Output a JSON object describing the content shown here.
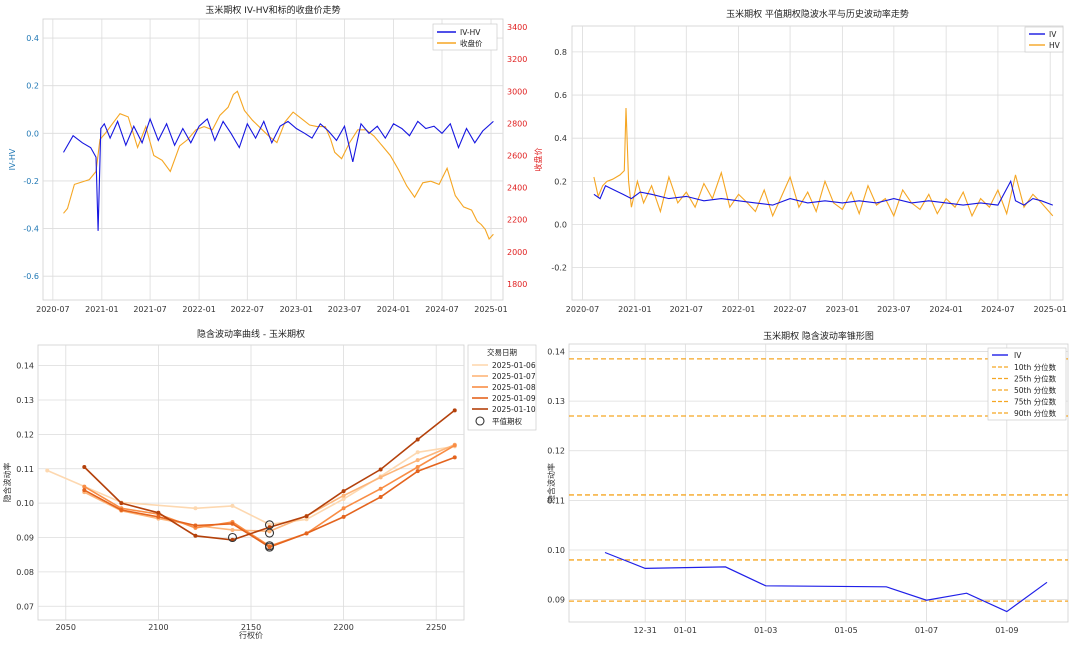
{
  "chart_data": [
    {
      "type": "line",
      "title": "玉米期权 IV-HV和标的收盘价走势",
      "ylabel": "IV-HV",
      "y2label": "收盘价",
      "x_ticks": [
        "2020-07",
        "2021-01",
        "2021-07",
        "2022-01",
        "2022-07",
        "2023-01",
        "2023-07",
        "2024-01",
        "2024-07",
        "2025-01"
      ],
      "y_ticks": [
        "-0.6",
        "-0.4",
        "-0.2",
        "0.0",
        "0.2",
        "0.4"
      ],
      "y2_ticks": [
        "1800",
        "2000",
        "2200",
        "2400",
        "2600",
        "2800",
        "3000",
        "3200",
        "3400"
      ],
      "ylim": [
        -0.7,
        0.48
      ],
      "y2lim": [
        1700,
        3450
      ],
      "legend_position": "top-right",
      "colors": {
        "IV-HV": "#1616e0",
        "收盘价": "#f5a623",
        "left_axis": "#1f77b4",
        "right_axis": "#e02020"
      },
      "series": [
        {
          "name": "IV-HV",
          "axis": "left",
          "x": [
            "2020-08-10",
            "2020-09-15",
            "2020-10-20",
            "2020-11-20",
            "2020-12-10",
            "2020-12-18",
            "2020-12-28",
            "2021-01-10",
            "2021-02-01",
            "2021-03-01",
            "2021-04-01",
            "2021-05-01",
            "2021-06-01",
            "2021-07-01",
            "2021-08-01",
            "2021-09-01",
            "2021-10-01",
            "2021-11-01",
            "2021-12-01",
            "2022-01-01",
            "2022-02-01",
            "2022-03-01",
            "2022-04-01",
            "2022-05-01",
            "2022-06-01",
            "2022-07-01",
            "2022-08-01",
            "2022-09-01",
            "2022-10-01",
            "2022-11-01",
            "2022-12-01",
            "2023-01-01",
            "2023-02-01",
            "2023-03-01",
            "2023-04-01",
            "2023-05-01",
            "2023-06-01",
            "2023-07-01",
            "2023-08-01",
            "2023-09-01",
            "2023-10-01",
            "2023-11-01",
            "2023-12-01",
            "2024-01-01",
            "2024-02-01",
            "2024-03-01",
            "2024-04-01",
            "2024-05-01",
            "2024-06-01",
            "2024-07-01",
            "2024-08-01",
            "2024-09-01",
            "2024-10-01",
            "2024-11-01",
            "2024-12-01",
            "2025-01-10"
          ],
          "y": [
            -0.08,
            -0.01,
            -0.04,
            -0.06,
            -0.1,
            -0.41,
            0.02,
            0.04,
            -0.02,
            0.05,
            -0.05,
            0.03,
            -0.04,
            0.06,
            -0.03,
            0.04,
            -0.05,
            0.02,
            -0.04,
            0.03,
            0.06,
            -0.03,
            0.05,
            0.0,
            -0.06,
            0.04,
            -0.02,
            0.05,
            -0.04,
            0.03,
            0.05,
            0.02,
            0.0,
            -0.02,
            0.04,
            0.01,
            -0.03,
            0.03,
            -0.12,
            0.04,
            0.0,
            0.03,
            -0.02,
            0.04,
            0.02,
            -0.01,
            0.05,
            0.02,
            0.03,
            0.0,
            0.04,
            -0.06,
            0.02,
            -0.04,
            0.01,
            0.05
          ]
        },
        {
          "name": "收盘价",
          "axis": "right",
          "x": [
            "2020-08-10",
            "2020-08-25",
            "2020-09-20",
            "2020-11-15",
            "2020-12-10",
            "2020-12-25",
            "2021-01-15",
            "2021-02-15",
            "2021-03-10",
            "2021-04-10",
            "2021-05-15",
            "2021-06-15",
            "2021-07-15",
            "2021-08-15",
            "2021-09-15",
            "2021-10-20",
            "2021-11-20",
            "2021-12-20",
            "2022-01-20",
            "2022-02-20",
            "2022-03-20",
            "2022-04-20",
            "2022-05-10",
            "2022-05-25",
            "2022-06-20",
            "2022-07-20",
            "2022-08-20",
            "2022-09-20",
            "2022-10-20",
            "2022-11-20",
            "2022-12-20",
            "2023-01-20",
            "2023-02-20",
            "2023-03-20",
            "2023-04-20",
            "2023-05-10",
            "2023-05-25",
            "2023-06-20",
            "2023-07-20",
            "2023-08-20",
            "2023-09-20",
            "2023-10-20",
            "2023-11-20",
            "2023-12-20",
            "2024-01-20",
            "2024-02-20",
            "2024-03-20",
            "2024-04-20",
            "2024-05-20",
            "2024-06-20",
            "2024-07-20",
            "2024-08-20",
            "2024-09-20",
            "2024-10-20",
            "2024-11-10",
            "2024-11-25",
            "2024-12-10",
            "2024-12-25",
            "2025-01-10"
          ],
          "y": [
            2240,
            2270,
            2420,
            2450,
            2500,
            2700,
            2740,
            2810,
            2860,
            2840,
            2650,
            2780,
            2600,
            2570,
            2500,
            2660,
            2700,
            2760,
            2780,
            2760,
            2850,
            2900,
            2980,
            3000,
            2880,
            2820,
            2770,
            2720,
            2680,
            2810,
            2870,
            2830,
            2790,
            2780,
            2780,
            2700,
            2620,
            2580,
            2680,
            2760,
            2760,
            2720,
            2660,
            2600,
            2510,
            2410,
            2340,
            2430,
            2440,
            2420,
            2520,
            2350,
            2280,
            2260,
            2190,
            2170,
            2140,
            2080,
            2110
          ]
        }
      ]
    },
    {
      "type": "line",
      "title": "玉米期权 平值期权隐波水平与历史波动率走势",
      "x_ticks": [
        "2020-07",
        "2021-01",
        "2021-07",
        "2022-01",
        "2022-07",
        "2023-01",
        "2023-07",
        "2024-01",
        "2024-07",
        "2025-01"
      ],
      "y_ticks": [
        "-0.2",
        "0.0",
        "0.2",
        "0.4",
        "0.6",
        "0.8"
      ],
      "ylim": [
        -0.35,
        0.92
      ],
      "legend_position": "top-right",
      "colors": {
        "IV": "#1616e0",
        "HV": "#f5a623"
      },
      "series": [
        {
          "name": "IV",
          "x": [
            "2020-08-10",
            "2020-09-01",
            "2020-09-20",
            "2020-10-20",
            "2020-11-20",
            "2020-12-20",
            "2021-01-20",
            "2021-03-01",
            "2021-05-01",
            "2021-07-01",
            "2021-09-01",
            "2021-11-01",
            "2022-01-01",
            "2022-03-01",
            "2022-05-01",
            "2022-07-01",
            "2022-09-01",
            "2022-11-01",
            "2023-01-01",
            "2023-03-01",
            "2023-05-01",
            "2023-07-01",
            "2023-09-01",
            "2023-11-01",
            "2024-01-01",
            "2024-03-01",
            "2024-05-01",
            "2024-07-01",
            "2024-08-15",
            "2024-09-01",
            "2024-10-01",
            "2024-11-01",
            "2024-12-01",
            "2025-01-10"
          ],
          "y": [
            0.14,
            0.12,
            0.18,
            0.16,
            0.14,
            0.12,
            0.15,
            0.14,
            0.12,
            0.13,
            0.11,
            0.12,
            0.11,
            0.1,
            0.09,
            0.12,
            0.1,
            0.11,
            0.1,
            0.11,
            0.1,
            0.12,
            0.1,
            0.11,
            0.1,
            0.09,
            0.1,
            0.09,
            0.2,
            0.11,
            0.09,
            0.12,
            0.11,
            0.09
          ]
        },
        {
          "name": "HV",
          "x": [
            "2020-08-10",
            "2020-08-25",
            "2020-09-10",
            "2020-09-25",
            "2020-10-15",
            "2020-11-10",
            "2020-11-25",
            "2020-12-01",
            "2020-12-10",
            "2020-12-20",
            "2021-01-10",
            "2021-02-01",
            "2021-03-01",
            "2021-04-01",
            "2021-05-01",
            "2021-06-01",
            "2021-07-01",
            "2021-08-01",
            "2021-09-01",
            "2021-10-01",
            "2021-11-01",
            "2021-12-01",
            "2022-01-01",
            "2022-02-01",
            "2022-03-01",
            "2022-04-01",
            "2022-05-01",
            "2022-06-01",
            "2022-07-01",
            "2022-08-01",
            "2022-09-01",
            "2022-10-01",
            "2022-11-01",
            "2022-12-01",
            "2023-01-01",
            "2023-02-01",
            "2023-03-01",
            "2023-04-01",
            "2023-05-01",
            "2023-06-01",
            "2023-07-01",
            "2023-08-01",
            "2023-09-01",
            "2023-10-01",
            "2023-11-01",
            "2023-12-01",
            "2024-01-01",
            "2024-02-01",
            "2024-03-01",
            "2024-04-01",
            "2024-05-01",
            "2024-06-01",
            "2024-07-01",
            "2024-08-01",
            "2024-09-01",
            "2024-10-01",
            "2024-11-01",
            "2024-12-01",
            "2025-01-10"
          ],
          "y": [
            0.22,
            0.13,
            0.18,
            0.2,
            0.21,
            0.23,
            0.25,
            0.54,
            0.2,
            0.08,
            0.2,
            0.1,
            0.18,
            0.06,
            0.22,
            0.1,
            0.15,
            0.08,
            0.19,
            0.12,
            0.24,
            0.08,
            0.14,
            0.1,
            0.06,
            0.16,
            0.04,
            0.13,
            0.22,
            0.08,
            0.15,
            0.06,
            0.2,
            0.1,
            0.07,
            0.15,
            0.05,
            0.18,
            0.09,
            0.12,
            0.04,
            0.16,
            0.1,
            0.07,
            0.14,
            0.05,
            0.12,
            0.08,
            0.15,
            0.04,
            0.12,
            0.08,
            0.16,
            0.05,
            0.23,
            0.08,
            0.14,
            0.1,
            0.04
          ]
        }
      ]
    },
    {
      "type": "line",
      "title": "隐含波动率曲线 - 玉米期权",
      "xlabel": "行权价",
      "ylabel": "隐含波动率",
      "x_ticks": [
        "2050",
        "2100",
        "2150",
        "2200",
        "2250"
      ],
      "y_ticks": [
        "0.07",
        "0.08",
        "0.09",
        "0.10",
        "0.11",
        "0.12",
        "0.13",
        "0.14"
      ],
      "xlim": [
        2035,
        2265
      ],
      "ylim": [
        0.066,
        0.146
      ],
      "legend_title": "交易日期",
      "legend_position": "top-right",
      "atm_label": "平值期权",
      "series": [
        {
          "name": "2025-01-06",
          "color": "#fdd8b0",
          "x": [
            2040,
            2080,
            2120,
            2140,
            2160,
            2180,
            2200,
            2220,
            2240,
            2260
          ],
          "y": [
            0.1095,
            0.1002,
            0.0985,
            0.0992,
            0.0938,
            0.0953,
            0.1012,
            0.1078,
            0.1148,
            0.1165
          ]
        },
        {
          "name": "2025-01-07",
          "color": "#fdb57a",
          "x": [
            2060,
            2080,
            2100,
            2120,
            2140,
            2160,
            2180,
            2200,
            2220,
            2240,
            2260
          ],
          "y": [
            0.1032,
            0.0978,
            0.0955,
            0.0935,
            0.0922,
            0.0918,
            0.0963,
            0.1022,
            0.1075,
            0.1125,
            0.117
          ]
        },
        {
          "name": "2025-01-08",
          "color": "#f98d45",
          "x": [
            2060,
            2080,
            2100,
            2120,
            2140,
            2160,
            2180,
            2200,
            2220,
            2240,
            2260
          ],
          "y": [
            0.1048,
            0.0985,
            0.0968,
            0.0928,
            0.0945,
            0.0875,
            0.0912,
            0.0985,
            0.1042,
            0.1105,
            0.1168
          ]
        },
        {
          "name": "2025-01-09",
          "color": "#e4641e",
          "x": [
            2060,
            2080,
            2100,
            2120,
            2140,
            2160,
            2180,
            2200,
            2220,
            2240,
            2260
          ],
          "y": [
            0.1038,
            0.098,
            0.096,
            0.0935,
            0.094,
            0.0872,
            0.0912,
            0.096,
            0.1018,
            0.1093,
            0.1133
          ]
        },
        {
          "name": "2025-01-10",
          "color": "#b4410b",
          "x": [
            2060,
            2080,
            2100,
            2120,
            2140,
            2160,
            2180,
            2200,
            2220,
            2240,
            2260
          ],
          "y": [
            0.1105,
            0.1,
            0.0972,
            0.0905,
            0.0893,
            0.093,
            0.0962,
            0.1035,
            0.1098,
            0.1185,
            0.127
          ]
        }
      ],
      "atm_points": [
        {
          "x": 2140,
          "y": 0.09
        },
        {
          "x": 2160,
          "y": 0.0937
        },
        {
          "x": 2160,
          "y": 0.0913
        },
        {
          "x": 2160,
          "y": 0.0876
        },
        {
          "x": 2160,
          "y": 0.0872
        }
      ]
    },
    {
      "type": "line",
      "title": "玉米期权 隐含波动率锥形图",
      "ylabel": "隐含波动率",
      "x_ticks": [
        "12-31",
        "01-01",
        "01-03",
        "01-05",
        "01-07",
        "01-09"
      ],
      "y_ticks": [
        "0.09",
        "0.10",
        "0.11",
        "0.12",
        "0.13",
        "0.14"
      ],
      "ylim": [
        0.0855,
        0.1415
      ],
      "legend_position": "top-right",
      "series": [
        {
          "name": "IV",
          "color": "#2020e8",
          "x": [
            "2024-12-30",
            "2024-12-31",
            "2025-01-02",
            "2025-01-03",
            "2025-01-06",
            "2025-01-07",
            "2025-01-08",
            "2025-01-09",
            "2025-01-10"
          ],
          "y": [
            0.0995,
            0.0963,
            0.0966,
            0.0928,
            0.0926,
            0.0899,
            0.0913,
            0.0876,
            0.0935
          ]
        }
      ],
      "percentiles": [
        {
          "name": "10th 分位数",
          "value": 0.0897
        },
        {
          "name": "25th 分位数",
          "value": 0.098
        },
        {
          "name": "50th 分位数",
          "value": 0.1111
        },
        {
          "name": "75th 分位数",
          "value": 0.127
        },
        {
          "name": "90th 分位数",
          "value": 0.1385
        }
      ],
      "percentile_color": "#f5a623"
    }
  ]
}
